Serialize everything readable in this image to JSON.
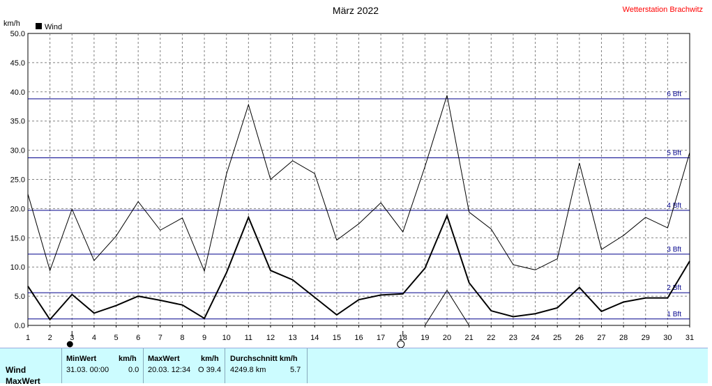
{
  "title": "März 2022",
  "station": "Wetterstation Brachwitz",
  "legend": {
    "label": "Wind",
    "color": "#000000"
  },
  "colors": {
    "grid": "#808080",
    "bft": "#00008b",
    "bft_label": "#00008b",
    "station": "#ff0000"
  },
  "chart_data": {
    "type": "line",
    "title": "März 2022",
    "ylabel": "km/h",
    "ylim": [
      0,
      50
    ],
    "yticks": [
      "0.0",
      "5.0",
      "10.0",
      "15.0",
      "20.0",
      "25.0",
      "30.0",
      "35.0",
      "40.0",
      "45.0",
      "50.0"
    ],
    "x": [
      1,
      2,
      3,
      4,
      5,
      6,
      7,
      8,
      9,
      10,
      11,
      12,
      13,
      14,
      15,
      16,
      17,
      18,
      19,
      20,
      21,
      22,
      23,
      24,
      25,
      26,
      27,
      28,
      29,
      30,
      31
    ],
    "grid": true,
    "legend_position": "top-left",
    "series": [
      {
        "name": "Wind",
        "role": "mean",
        "values": [
          6.7,
          1.0,
          5.3,
          2.1,
          3.4,
          5.0,
          4.3,
          3.5,
          1.2,
          9.0,
          18.5,
          9.4,
          7.8,
          4.8,
          1.8,
          4.4,
          5.2,
          5.4,
          9.8,
          18.8,
          7.3,
          2.5,
          1.5,
          2.0,
          3.0,
          6.5,
          2.4,
          4.0,
          4.7,
          4.7,
          11.0
        ]
      },
      {
        "name": "",
        "role": "gust",
        "values": [
          22.5,
          9.4,
          19.9,
          11.1,
          15.3,
          21.2,
          16.3,
          18.4,
          9.3,
          25.9,
          37.8,
          25.0,
          28.2,
          26.0,
          14.6,
          17.4,
          21.0,
          16.0,
          27.2,
          39.4,
          19.4,
          16.5,
          10.4,
          9.5,
          11.4,
          27.8,
          13.0,
          15.4,
          18.5,
          16.7,
          29.6
        ]
      },
      {
        "name": "",
        "role": "min-segments",
        "segments": [
          [
            [
              10.4,
              0.0
            ],
            [
              11.4,
              0.0
            ]
          ],
          [
            [
              19.0,
              0.0
            ],
            [
              20.0,
              6.0
            ],
            [
              21.0,
              0.0
            ]
          ]
        ]
      }
    ],
    "beaufort": [
      {
        "label": "1 Bft",
        "value": 1.1
      },
      {
        "label": "2 Bft",
        "value": 5.6
      },
      {
        "label": "3 Bft",
        "value": 12.2
      },
      {
        "label": "4 Bft",
        "value": 19.7
      },
      {
        "label": "5 Bft",
        "value": 28.7
      },
      {
        "label": "6 Bft",
        "value": 38.8
      }
    ],
    "markers": [
      {
        "day": 3,
        "symbol": "filled-circle",
        "name": "min-marker"
      },
      {
        "day": 18,
        "symbol": "open-circle",
        "name": "max-marker"
      }
    ]
  },
  "stats": {
    "row_label": "Wind",
    "row_label2": "MaxWert",
    "min_header": "MinWert",
    "min_unit": "km/h",
    "min_date": "31.03.  00:00",
    "min_value": "0.0",
    "max_header": "MaxWert",
    "max_unit": "km/h",
    "max_date": "20.03.  12:34",
    "max_value": "O 39.4",
    "avg_header": "Durchschnitt km/h",
    "avg_distance": "4249.8 km",
    "avg_value": "5.7"
  }
}
